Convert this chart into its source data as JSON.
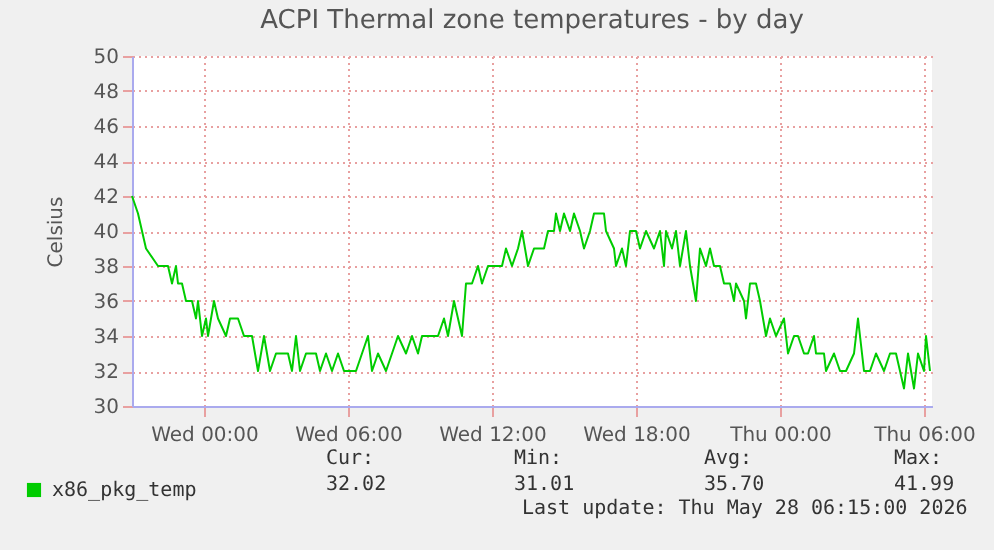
{
  "chart_data": {
    "type": "line",
    "title": "ACPI Thermal zone temperatures - by day",
    "ylabel": "Celsius",
    "x": [
      "2026-05-26T21:00",
      "2026-05-26T21:15",
      "2026-05-26T21:25",
      "2026-05-26T21:35",
      "2026-05-26T22:05",
      "2026-05-26T22:30",
      "2026-05-26T22:40",
      "2026-05-26T22:50",
      "2026-05-26T22:55",
      "2026-05-26T23:05",
      "2026-05-26T23:15",
      "2026-05-26T23:30",
      "2026-05-26T23:40",
      "2026-05-26T23:45",
      "2026-05-26T23:55",
      "2026-05-27T00:05",
      "2026-05-27T00:10",
      "2026-05-27T00:25",
      "2026-05-27T00:35",
      "2026-05-27T00:55",
      "2026-05-27T01:05",
      "2026-05-27T01:25",
      "2026-05-27T01:40",
      "2026-05-27T02:00",
      "2026-05-27T02:15",
      "2026-05-27T02:30",
      "2026-05-27T02:45",
      "2026-05-27T03:00",
      "2026-05-27T03:30",
      "2026-05-27T03:40",
      "2026-05-27T03:50",
      "2026-05-27T04:00",
      "2026-05-27T04:15",
      "2026-05-27T04:40",
      "2026-05-27T04:50",
      "2026-05-27T05:05",
      "2026-05-27T05:20",
      "2026-05-27T05:35",
      "2026-05-27T05:50",
      "2026-05-27T06:20",
      "2026-05-27T06:35",
      "2026-05-27T06:50",
      "2026-05-27T07:00",
      "2026-05-27T07:15",
      "2026-05-27T07:35",
      "2026-05-27T07:50",
      "2026-05-27T08:05",
      "2026-05-27T08:25",
      "2026-05-27T08:40",
      "2026-05-27T08:55",
      "2026-05-27T09:05",
      "2026-05-27T09:20",
      "2026-05-27T09:45",
      "2026-05-27T10:00",
      "2026-05-27T10:10",
      "2026-05-27T10:25",
      "2026-05-27T10:35",
      "2026-05-27T10:45",
      "2026-05-27T10:55",
      "2026-05-27T11:10",
      "2026-05-27T11:25",
      "2026-05-27T11:35",
      "2026-05-27T11:50",
      "2026-05-27T12:25",
      "2026-05-27T12:35",
      "2026-05-27T12:50",
      "2026-05-27T13:05",
      "2026-05-27T13:15",
      "2026-05-27T13:30",
      "2026-05-27T13:45",
      "2026-05-27T14:10",
      "2026-05-27T14:20",
      "2026-05-27T14:35",
      "2026-05-27T14:40",
      "2026-05-27T14:50",
      "2026-05-27T15:00",
      "2026-05-27T15:15",
      "2026-05-27T15:25",
      "2026-05-27T15:40",
      "2026-05-27T15:50",
      "2026-05-27T16:05",
      "2026-05-27T16:15",
      "2026-05-27T16:40",
      "2026-05-27T16:45",
      "2026-05-27T17:05",
      "2026-05-27T17:10",
      "2026-05-27T17:25",
      "2026-05-27T17:35",
      "2026-05-27T17:45",
      "2026-05-27T18:00",
      "2026-05-27T18:10",
      "2026-05-27T18:25",
      "2026-05-27T18:45",
      "2026-05-27T19:00",
      "2026-05-27T19:10",
      "2026-05-27T19:15",
      "2026-05-27T19:30",
      "2026-05-27T19:40",
      "2026-05-27T19:50",
      "2026-05-27T20:05",
      "2026-05-27T20:15",
      "2026-05-27T20:30",
      "2026-05-27T20:40",
      "2026-05-27T20:55",
      "2026-05-27T21:05",
      "2026-05-27T21:15",
      "2026-05-27T21:30",
      "2026-05-27T21:40",
      "2026-05-27T21:55",
      "2026-05-27T22:05",
      "2026-05-27T22:10",
      "2026-05-27T22:30",
      "2026-05-27T22:35",
      "2026-05-27T22:45",
      "2026-05-27T23:00",
      "2026-05-27T23:10",
      "2026-05-27T23:25",
      "2026-05-27T23:35",
      "2026-05-27T23:50",
      "2026-05-28T00:10",
      "2026-05-28T00:20",
      "2026-05-28T00:35",
      "2026-05-28T00:45",
      "2026-05-28T01:00",
      "2026-05-28T01:10",
      "2026-05-28T01:25",
      "2026-05-28T01:30",
      "2026-05-28T01:50",
      "2026-05-28T01:55",
      "2026-05-28T02:15",
      "2026-05-28T02:30",
      "2026-05-28T02:45",
      "2026-05-28T03:05",
      "2026-05-28T03:15",
      "2026-05-28T03:30",
      "2026-05-28T03:45",
      "2026-05-28T04:00",
      "2026-05-28T04:20",
      "2026-05-28T04:35",
      "2026-05-28T04:50",
      "2026-05-28T05:10",
      "2026-05-28T05:20",
      "2026-05-28T05:35",
      "2026-05-28T05:45",
      "2026-05-28T06:00",
      "2026-05-28T06:05",
      "2026-05-28T06:15"
    ],
    "series": [
      {
        "name": "x86_pkg_temp",
        "color": "#00cc00",
        "values": [
          42,
          41,
          40,
          39,
          38,
          38,
          37,
          38,
          37,
          37,
          36,
          36,
          35,
          36,
          34,
          35,
          34,
          36,
          35,
          34,
          35,
          35,
          34,
          34,
          32,
          34,
          32,
          33,
          33,
          32,
          34,
          32,
          33,
          33,
          32,
          33,
          32,
          33,
          32,
          32,
          33,
          34,
          32,
          33,
          32,
          33,
          34,
          33,
          34,
          33,
          34,
          34,
          34,
          35,
          34,
          36,
          35,
          34,
          37,
          37,
          38,
          37,
          38,
          38,
          39,
          38,
          39,
          40,
          38,
          39,
          39,
          40,
          40,
          41,
          40,
          41,
          40,
          41,
          40,
          39,
          40,
          41,
          41,
          40,
          39,
          38,
          39,
          38,
          40,
          40,
          39,
          40,
          39,
          40,
          38,
          40,
          39,
          40,
          38,
          40,
          38,
          36,
          39,
          38,
          39,
          38,
          38,
          37,
          37,
          36,
          37,
          36,
          35,
          37,
          37,
          36,
          34,
          35,
          34,
          35,
          33,
          34,
          34,
          33,
          33,
          34,
          33,
          33,
          32,
          33,
          32,
          32,
          33,
          35,
          32,
          32,
          33,
          32,
          33,
          33,
          31,
          33,
          31,
          33,
          32,
          34,
          32
        ]
      }
    ],
    "xlim": [
      "2026-05-26T21:00",
      "2026-05-28T06:20"
    ],
    "xticks": [
      {
        "value": "2026-05-27T00:00",
        "label": "Wed 00:00"
      },
      {
        "value": "2026-05-27T06:00",
        "label": "Wed 06:00"
      },
      {
        "value": "2026-05-27T12:00",
        "label": "Wed 12:00"
      },
      {
        "value": "2026-05-27T18:00",
        "label": "Wed 18:00"
      },
      {
        "value": "2026-05-28T00:00",
        "label": "Thu 00:00"
      },
      {
        "value": "2026-05-28T06:00",
        "label": "Thu 06:00"
      }
    ],
    "ylim": [
      30,
      50
    ],
    "yticks": [
      30,
      32,
      34,
      36,
      38,
      40,
      42,
      44,
      46,
      48,
      50
    ],
    "grid": true,
    "legend": "bottom left",
    "annotations": [
      "Cur:",
      "Min:",
      "Avg:",
      "Max:",
      "32.02",
      "31.01",
      "35.70",
      "41.99",
      "Last update: Thu May 28 06:15:00 2026"
    ]
  }
}
